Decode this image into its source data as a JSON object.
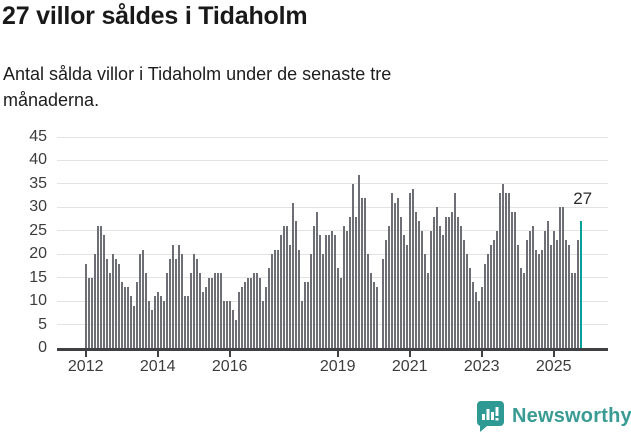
{
  "header": {
    "title": "27 villor såldes i Tidaholm",
    "subtitle": "Antal sålda villor i Tidaholm under de senaste tre månaderna."
  },
  "chart_data": {
    "type": "bar",
    "title": "27 villor såldes i Tidaholm",
    "ylim": [
      0,
      45
    ],
    "y_ticks": [
      0,
      5,
      10,
      15,
      20,
      25,
      30,
      35,
      40,
      45
    ],
    "grid": true,
    "x_ticks": [
      {
        "label": "2012",
        "month_index": 0
      },
      {
        "label": "2014",
        "month_index": 24
      },
      {
        "label": "2016",
        "month_index": 48
      },
      {
        "label": "2019",
        "month_index": 84
      },
      {
        "label": "2021",
        "month_index": 108
      },
      {
        "label": "2023",
        "month_index": 132
      },
      {
        "label": "2025",
        "month_index": 156
      }
    ],
    "values": [
      18,
      15,
      15,
      20,
      26,
      26,
      24,
      19,
      16,
      20,
      19,
      18,
      14,
      13,
      13,
      11,
      9,
      14,
      20,
      21,
      16,
      10,
      8,
      11,
      12,
      11,
      10,
      16,
      19,
      22,
      19,
      22,
      20,
      11,
      11,
      16,
      20,
      19,
      16,
      12,
      13,
      15,
      15,
      16,
      16,
      16,
      10,
      10,
      10,
      8,
      6,
      12,
      13,
      14,
      15,
      15,
      16,
      16,
      15,
      10,
      13,
      17,
      20,
      21,
      21,
      24,
      26,
      26,
      22,
      31,
      27,
      21,
      10,
      14,
      14,
      20,
      26,
      29,
      24,
      20,
      24,
      24,
      25,
      24,
      17,
      15,
      26,
      25,
      28,
      35,
      28,
      37,
      32,
      32,
      20,
      16,
      14,
      13,
      0,
      19,
      23,
      26,
      33,
      31,
      32,
      28,
      24,
      22,
      33,
      34,
      29,
      27,
      25,
      20,
      16,
      25,
      28,
      30,
      26,
      24,
      28,
      28,
      29,
      33,
      28,
      26,
      23,
      20,
      17,
      14,
      12,
      10,
      13,
      18,
      20,
      22,
      23,
      25,
      33,
      35,
      33,
      33,
      29,
      29,
      22,
      17,
      16,
      23,
      25,
      26,
      21,
      20,
      21,
      25,
      27,
      22,
      25,
      23,
      30,
      30,
      23,
      22,
      16,
      16,
      23,
      27
    ],
    "bar_color": "#6e6e76",
    "highlight": {
      "index": 165,
      "value_label": "27",
      "color": "#00a29a"
    }
  },
  "footer": {
    "brand": "Newsworthy",
    "brand_color": "#3a9b94",
    "logo_icon": "newsworthy-speech-bubble-bar-chart"
  }
}
